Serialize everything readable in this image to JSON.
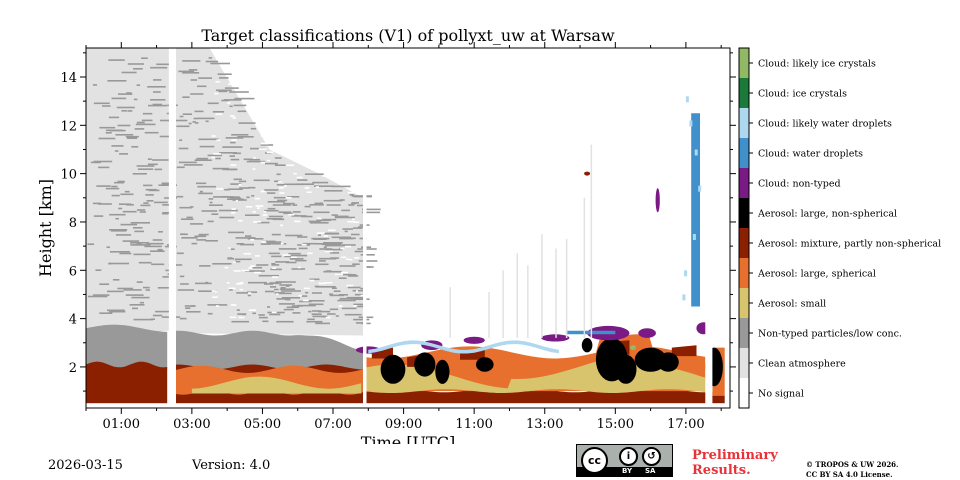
{
  "chart_data": {
    "type": "heatmap",
    "title": "Target classifications (V1) of pollyxt_uw at Warsaw",
    "xlabel": "Time [UTC]",
    "ylabel": "Height [km]",
    "xlim": [
      0,
      18.25
    ],
    "ylim": [
      0.3,
      15.2
    ],
    "x_ticks": [
      1,
      3,
      5,
      7,
      9,
      11,
      13,
      15,
      17
    ],
    "x_tick_labels": [
      "01:00",
      "03:00",
      "05:00",
      "07:00",
      "09:00",
      "11:00",
      "13:00",
      "15:00",
      "17:00"
    ],
    "y_ticks": [
      2,
      4,
      6,
      8,
      10,
      12,
      14
    ],
    "y_tick_labels": [
      "2",
      "4",
      "6",
      "8",
      "10",
      "12",
      "14"
    ],
    "data_gaps_hours": [
      [
        2.35,
        2.55
      ],
      [
        7.85,
        7.95
      ],
      [
        17.55,
        17.75
      ]
    ],
    "classes": [
      {
        "label": "Cloud: likely ice crystals",
        "color": "#90b865"
      },
      {
        "label": "Cloud: ice crystals",
        "color": "#1a7a3a"
      },
      {
        "label": "Cloud: likely water droplets",
        "color": "#add8f0"
      },
      {
        "label": "Cloud: water droplets",
        "color": "#4090cc"
      },
      {
        "label": "Cloud: non-typed",
        "color": "#7a1a84"
      },
      {
        "label": "Aerosol: large, non-spherical",
        "color": "#000000"
      },
      {
        "label": "Aerosol: mixture, partly non-spherical",
        "color": "#8b2000"
      },
      {
        "label": "Aerosol: large, spherical",
        "color": "#e8702e"
      },
      {
        "label": "Aerosol: small",
        "color": "#d8c46c"
      },
      {
        "label": "Non-typed particles/low conc.",
        "color": "#999999"
      },
      {
        "label": "Clean atmosphere",
        "color": "#e2e2e2"
      },
      {
        "label": "No signal",
        "color": "#ffffff"
      }
    ]
  },
  "footer": {
    "date": "2026-03-15",
    "version": "Version: 4.0",
    "license_badge": {
      "main": "cc",
      "by": "BY",
      "sa": "SA"
    },
    "preliminary_line1": "Preliminary",
    "preliminary_line2": "Results.",
    "copyright_line1": "© TROPOS & UW 2026.",
    "copyright_line2": "CC BY SA 4.0 License."
  }
}
